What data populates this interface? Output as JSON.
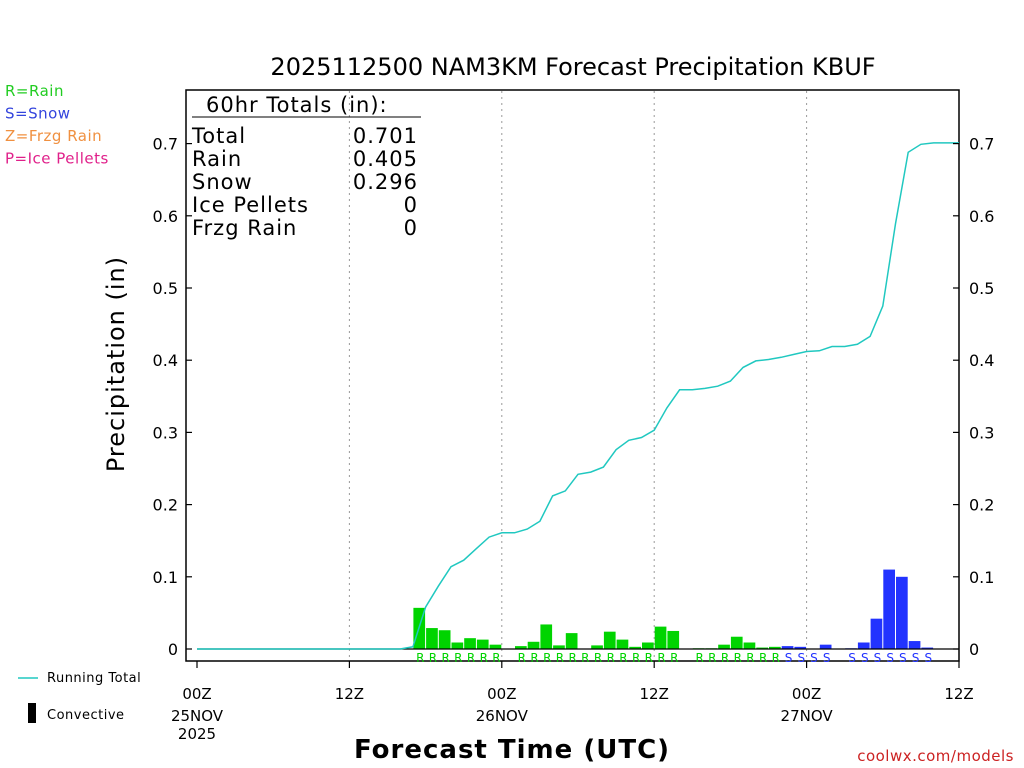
{
  "chart_data": {
    "type": "bar",
    "title": "2025112500 NAM3KM Forecast Precipitation KBUF",
    "ylabel": "Precipitation (in)",
    "xlabel": "Forecast Time (UTC)",
    "ylim": [
      0,
      0.77
    ],
    "yticks": [
      "0",
      "0.1",
      "0.2",
      "0.3",
      "0.4",
      "0.5",
      "0.6",
      "0.7"
    ],
    "xlim_hours": [
      0,
      60
    ],
    "xticks": [
      {
        "hour": 0,
        "label": "00Z",
        "date": "25NOV",
        "year": "2025"
      },
      {
        "hour": 12,
        "label": "12Z",
        "date": "",
        "year": ""
      },
      {
        "hour": 24,
        "label": "00Z",
        "date": "26NOV",
        "year": ""
      },
      {
        "hour": 36,
        "label": "12Z",
        "date": "",
        "year": ""
      },
      {
        "hour": 48,
        "label": "00Z",
        "date": "27NOV",
        "year": ""
      },
      {
        "hour": 60,
        "label": "12Z",
        "date": "",
        "year": ""
      }
    ],
    "hourly_precip": [
      0,
      0,
      0,
      0,
      0,
      0,
      0,
      0,
      0,
      0,
      0,
      0,
      0,
      0,
      0,
      0,
      0,
      0.057,
      0.029,
      0.026,
      0.009,
      0.015,
      0.013,
      0.006,
      0,
      0.004,
      0.01,
      0.034,
      0.005,
      0.022,
      0,
      0.005,
      0.024,
      0.013,
      0.003,
      0.009,
      0.031,
      0.025,
      0,
      0.001,
      0.001,
      0.006,
      0.017,
      0.009,
      0.002,
      0.003,
      0.004,
      0.003,
      0,
      0.006,
      0,
      0.001,
      0.009,
      0.042,
      0.11,
      0.1,
      0.011,
      0.002,
      0,
      0,
      0
    ],
    "precip_type": [
      "",
      "",
      "",
      "",
      "",
      "",
      "",
      "",
      "",
      "",
      "",
      "",
      "",
      "",
      "",
      "",
      "",
      "R",
      "R",
      "R",
      "R",
      "R",
      "R",
      "R",
      "",
      "R",
      "R",
      "R",
      "R",
      "R",
      "R",
      "R",
      "R",
      "R",
      "R",
      "R",
      "R",
      "R",
      "",
      "R",
      "R",
      "R",
      "R",
      "R",
      "R",
      "R",
      "S",
      "S",
      "S",
      "S",
      "",
      "S",
      "S",
      "S",
      "S",
      "S",
      "S",
      "S",
      "",
      "",
      ""
    ],
    "running_total": [
      0,
      0,
      0,
      0,
      0,
      0,
      0,
      0,
      0,
      0,
      0,
      0,
      0,
      0,
      0,
      0,
      0,
      0.003,
      0.058,
      0.087,
      0.114,
      0.123,
      0.139,
      0.155,
      0.161,
      0.161,
      0.166,
      0.177,
      0.212,
      0.219,
      0.242,
      0.245,
      0.252,
      0.276,
      0.289,
      0.293,
      0.303,
      0.334,
      0.359,
      0.359,
      0.361,
      0.364,
      0.371,
      0.39,
      0.399,
      0.401,
      0.404,
      0.408,
      0.412,
      0.413,
      0.419,
      0.419,
      0.422,
      0.433,
      0.475,
      0.589,
      0.688,
      0.699,
      0.701,
      0.701,
      0.701
    ],
    "series": [
      {
        "name": "Running Total",
        "color": "#20c8c0"
      },
      {
        "name": "Convective",
        "color": "#000000"
      }
    ],
    "type_colors": {
      "R": "#00d400",
      "S": "#2233ff",
      "Z": "#f09040",
      "P": "#e0208a"
    }
  },
  "totals_box": {
    "header": "60hr Totals (in):",
    "rows": [
      {
        "label": "Total",
        "value": "0.701"
      },
      {
        "label": "Rain",
        "value": "0.405"
      },
      {
        "label": "Snow",
        "value": "0.296"
      },
      {
        "label": "Ice Pellets",
        "value": "0"
      },
      {
        "label": "Frzg Rain",
        "value": "0"
      }
    ]
  },
  "type_legend": [
    {
      "text": "R=Rain",
      "color": "#22cc22"
    },
    {
      "text": "S=Snow",
      "color": "#3344dd"
    },
    {
      "text": "Z=Frzg Rain",
      "color": "#f09040"
    },
    {
      "text": "P=Ice Pellets",
      "color": "#e0208a"
    }
  ],
  "bottom_legend": {
    "running_total": "Running Total",
    "convective": "Convective"
  },
  "credit": "coolwx.com/models"
}
